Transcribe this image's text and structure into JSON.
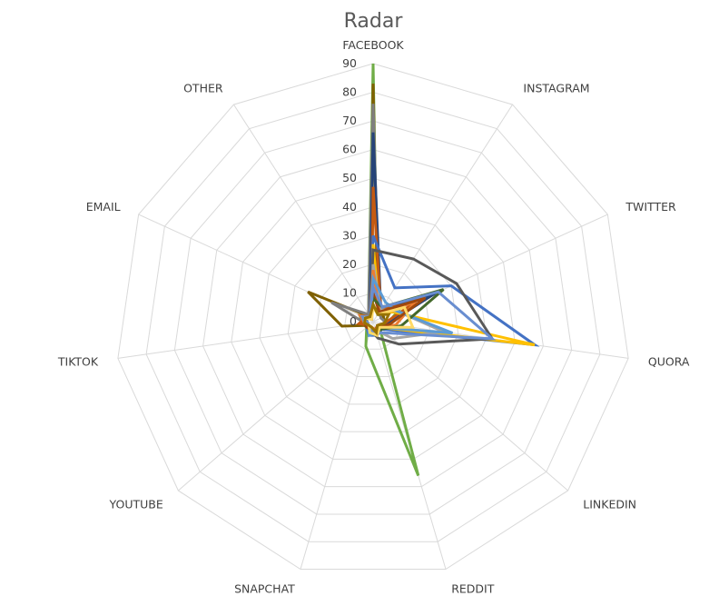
{
  "chart_data": {
    "type": "radar",
    "title": "Radar",
    "categories": [
      "FACEBOOK",
      "INSTAGRAM",
      "TWITTER",
      "QUORA",
      "LINKEDIN",
      "REDDIT",
      "SNAPCHAT",
      "YOUTUBE",
      "TIKTOK",
      "EMAIL",
      "OTHER"
    ],
    "rmax": 90,
    "ticks": [
      0,
      10,
      20,
      30,
      40,
      50,
      60,
      70,
      80,
      90
    ],
    "tick_labels": [
      "0",
      "10",
      "20",
      "30",
      "40",
      "50",
      "60",
      "70",
      "80",
      "90"
    ],
    "grid": true,
    "grid_color": "#d9d9d9",
    "legend": "none",
    "series": [
      {
        "color": "#70ad47",
        "values": [
          90,
          3,
          10,
          5,
          3,
          56,
          9,
          3,
          4,
          5,
          3
        ]
      },
      {
        "color": "#7f6000",
        "values": [
          83,
          3,
          4,
          4,
          2,
          3,
          3,
          2,
          11,
          25,
          2
        ]
      },
      {
        "color": "#7f7f7f",
        "values": [
          76,
          4,
          3,
          5,
          2,
          3,
          3,
          2,
          3,
          16,
          3
        ]
      },
      {
        "color": "#264478",
        "values": [
          66,
          5,
          24,
          5,
          3,
          3,
          3,
          2,
          3,
          5,
          2
        ]
      },
      {
        "color": "#c55a11",
        "values": [
          47,
          5,
          16,
          4,
          2,
          3,
          3,
          2,
          5,
          3,
          1
        ]
      },
      {
        "color": "#4472c4",
        "values": [
          30,
          14,
          30,
          57,
          4,
          5,
          5,
          3,
          3,
          4,
          2
        ]
      },
      {
        "color": "#ffc000",
        "values": [
          27,
          4,
          8,
          57,
          3,
          3,
          2,
          2,
          3,
          3,
          1
        ]
      },
      {
        "color": "#595959",
        "values": [
          25,
          26,
          32,
          42,
          12,
          6,
          3,
          2,
          3,
          3,
          2
        ]
      },
      {
        "color": "#a5a5a5",
        "values": [
          20,
          5,
          9,
          25,
          9,
          3,
          2,
          2,
          2,
          3,
          1
        ]
      },
      {
        "color": "#ed7d31",
        "values": [
          18,
          4,
          16,
          8,
          3,
          3,
          2,
          2,
          3,
          5,
          2
        ]
      },
      {
        "color": "#5b9bd5",
        "values": [
          15,
          8,
          9,
          28,
          3,
          4,
          5,
          2,
          3,
          4,
          2
        ]
      },
      {
        "color": "#9e480e",
        "values": [
          10,
          4,
          20,
          6,
          3,
          3,
          3,
          3,
          3,
          3,
          2
        ]
      },
      {
        "color": "#43682b",
        "values": [
          8,
          6,
          27,
          10,
          4,
          4,
          3,
          2,
          2,
          3,
          2
        ]
      },
      {
        "color": "#698ed0",
        "values": [
          12,
          6,
          25,
          42,
          6,
          4,
          3,
          2,
          2,
          4,
          2
        ]
      },
      {
        "color": "#ffd966",
        "values": [
          5,
          3,
          12,
          14,
          3,
          5,
          4,
          2,
          3,
          3,
          1
        ]
      },
      {
        "color": "#997300",
        "values": [
          6,
          3,
          6,
          4,
          2,
          4,
          2,
          2,
          3,
          3,
          2
        ]
      }
    ]
  }
}
